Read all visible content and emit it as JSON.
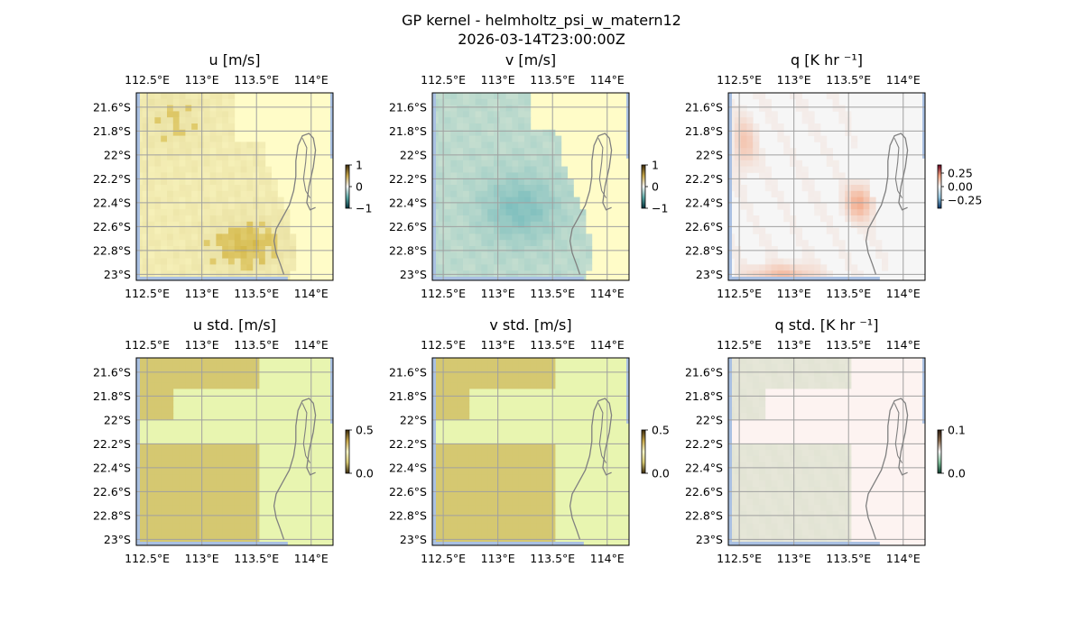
{
  "figure": {
    "title": "GP kernel - helmholtz_psi_w_matern12",
    "subtitle": "2026-03-14T23:00:00Z"
  },
  "chart_data": [
    {
      "type": "heatmap",
      "title": "u [m/s]",
      "x_ticks": [
        "112.5°E",
        "113°E",
        "113.5°E",
        "114°E"
      ],
      "y_ticks": [
        "21.6°S",
        "21.8°S",
        "22°S",
        "22.2°S",
        "22.4°S",
        "22.6°S",
        "22.8°S",
        "23°S"
      ],
      "x_range": [
        112.4,
        114.2
      ],
      "y_range": [
        -23.05,
        -21.48
      ],
      "colorbar": {
        "ticks": [
          "1",
          "0",
          "−1"
        ],
        "range": [
          -1,
          1
        ]
      },
      "colors": {
        "land": "#fffcc8",
        "ocean": "#e2d796",
        "strong": "#d4b84a",
        "edge": "#a9c0e2"
      }
    },
    {
      "type": "heatmap",
      "title": "v [m/s]",
      "x_ticks": [
        "112.5°E",
        "113°E",
        "113.5°E",
        "114°E"
      ],
      "y_ticks": [
        "21.6°S",
        "21.8°S",
        "22°S",
        "22.2°S",
        "22.4°S",
        "22.6°S",
        "22.8°S",
        "23°S"
      ],
      "x_range": [
        112.4,
        114.2
      ],
      "y_range": [
        -23.05,
        -21.48
      ],
      "colorbar": {
        "ticks": [
          "1",
          "0",
          "−1"
        ],
        "range": [
          -1,
          1
        ]
      },
      "colors": {
        "land": "#fffcc8",
        "ocean": "#d7e6d4",
        "strong": "#7fbfbe",
        "edge": "#a9c0e2"
      }
    },
    {
      "type": "heatmap",
      "title": "q [K hr ⁻¹]",
      "x_ticks": [
        "112.5°E",
        "113°E",
        "113.5°E",
        "114°E"
      ],
      "y_ticks": [
        "21.6°S",
        "21.8°S",
        "22°S",
        "22.2°S",
        "22.4°S",
        "22.6°S",
        "22.8°S",
        "23°S"
      ],
      "x_range": [
        112.4,
        114.2
      ],
      "y_range": [
        -23.05,
        -21.48
      ],
      "colorbar": {
        "ticks": [
          "0.25",
          "0.00",
          "−0.25"
        ],
        "range": [
          -0.35,
          0.35
        ]
      },
      "colors": {
        "land": "#f6f6f6",
        "ocean": "#f4f4f4",
        "strong": "#f4a582",
        "edge": "#a9c0e2"
      }
    },
    {
      "type": "heatmap",
      "title": "u std. [m/s]",
      "x_ticks": [
        "112.5°E",
        "113°E",
        "113.5°E",
        "114°E"
      ],
      "y_ticks": [
        "21.6°S",
        "21.8°S",
        "22°S",
        "22.2°S",
        "22.4°S",
        "22.6°S",
        "22.8°S",
        "23°S"
      ],
      "x_range": [
        112.4,
        114.2
      ],
      "y_range": [
        -23.05,
        -21.48
      ],
      "colorbar": {
        "ticks": [
          "0.5",
          "0.0"
        ],
        "range": [
          0,
          0.5
        ]
      },
      "colors": {
        "land": "#e8f5b0",
        "ocean": "#d5c871",
        "strong": "#d5c871",
        "edge": "#a9c0e2"
      }
    },
    {
      "type": "heatmap",
      "title": "v std. [m/s]",
      "x_ticks": [
        "112.5°E",
        "113°E",
        "113.5°E",
        "114°E"
      ],
      "y_ticks": [
        "21.6°S",
        "21.8°S",
        "22°S",
        "22.2°S",
        "22.4°S",
        "22.6°S",
        "22.8°S",
        "23°S"
      ],
      "x_range": [
        112.4,
        114.2
      ],
      "y_range": [
        -23.05,
        -21.48
      ],
      "colorbar": {
        "ticks": [
          "0.5",
          "0.0"
        ],
        "range": [
          0,
          0.5
        ]
      },
      "colors": {
        "land": "#e8f5b0",
        "ocean": "#d5c871",
        "strong": "#d5c871",
        "edge": "#a9c0e2"
      }
    },
    {
      "type": "heatmap",
      "title": "q std. [K hr ⁻¹]",
      "x_ticks": [
        "112.5°E",
        "113°E",
        "113.5°E",
        "114°E"
      ],
      "y_ticks": [
        "21.6°S",
        "21.8°S",
        "22°S",
        "22.2°S",
        "22.4°S",
        "22.6°S",
        "22.8°S",
        "23°S"
      ],
      "x_range": [
        112.4,
        114.2
      ],
      "y_range": [
        -23.05,
        -21.48
      ],
      "colorbar": {
        "ticks": [
          "0.1",
          "0.0"
        ],
        "range": [
          0,
          0.1
        ]
      },
      "colors": {
        "land": "#fdf3f1",
        "ocean": "#e6e6d8",
        "strong": "#d9dfcc",
        "edge": "#a9c0e2"
      }
    }
  ]
}
